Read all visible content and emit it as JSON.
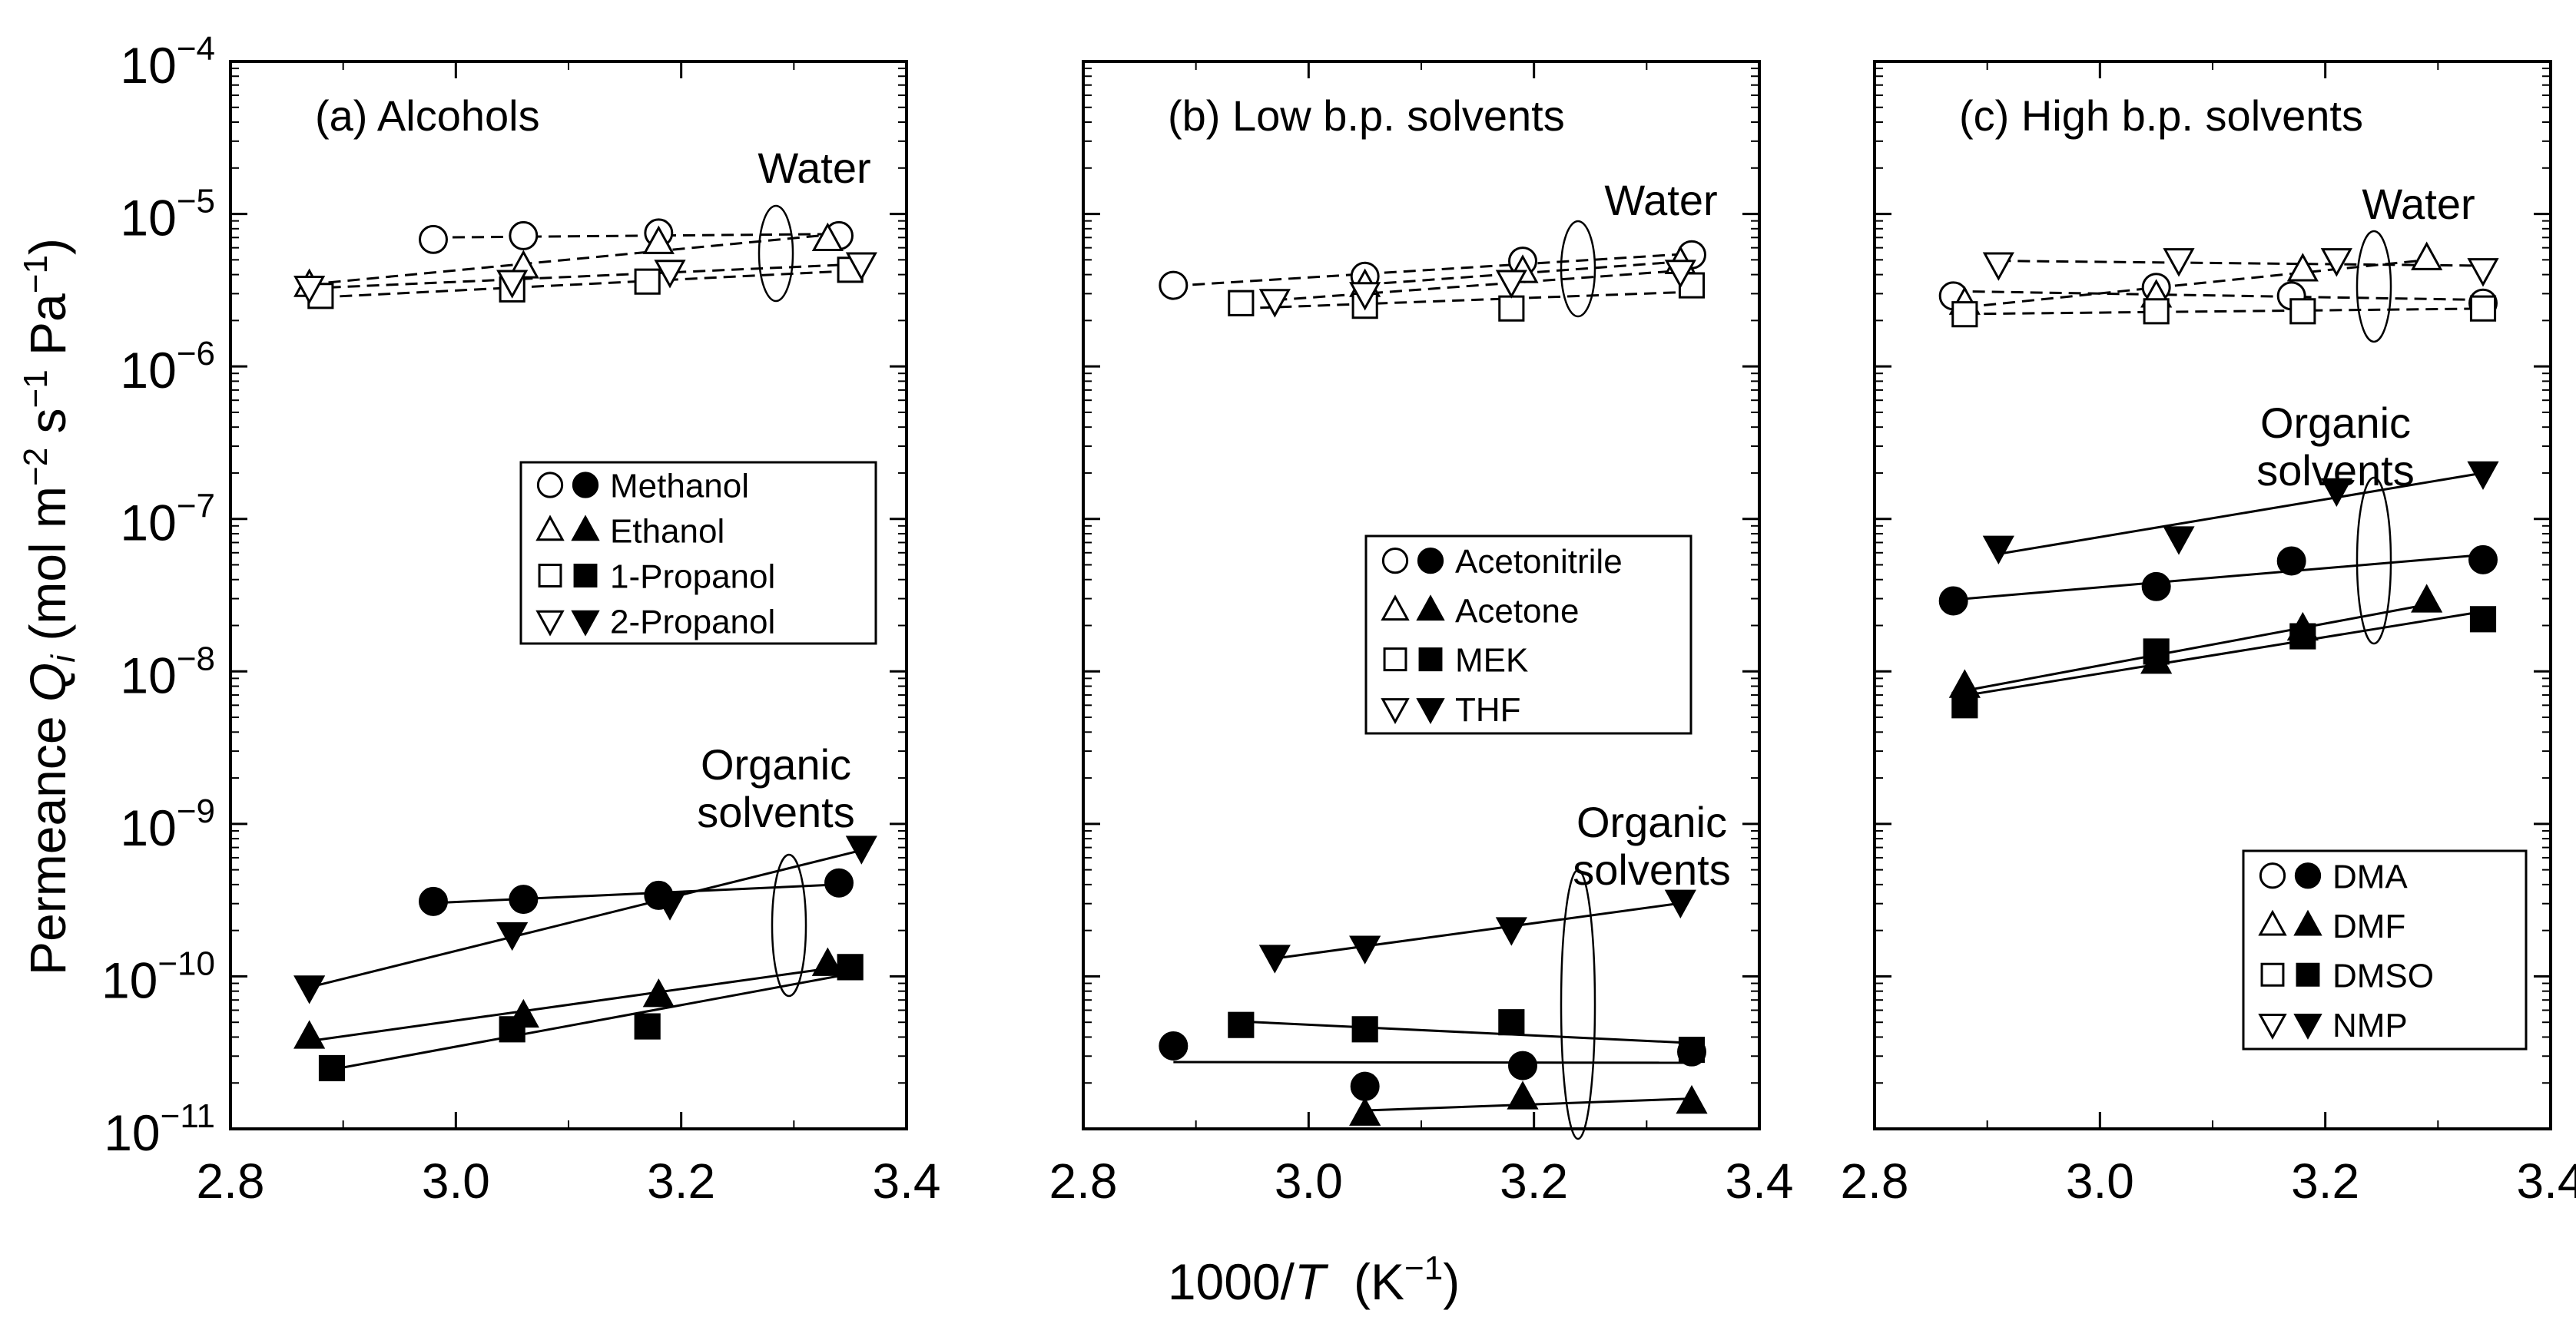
{
  "figure": {
    "ylabel_prefix": "Permeance ",
    "ylabel_var": "Q",
    "ylabel_sub": "i",
    "ylabel_unit_open": " (mol m",
    "ylabel_exp1": "−2",
    "ylabel_s": " s",
    "ylabel_exp2": "−1",
    "ylabel_pa": " Pa",
    "ylabel_exp3": "−1",
    "ylabel_close": ")",
    "xlabel_prefix": "1000/",
    "xlabel_var": "T",
    "xlabel_unit": "  (K",
    "xlabel_exp": "−1",
    "xlabel_close": ")",
    "y_tick_base": "10",
    "y_tick_exponents": [
      "−11",
      "−10",
      "−9",
      "−8",
      "−7",
      "−6",
      "−5",
      "−4"
    ],
    "x_tick_labels": [
      "2.8",
      "3.0",
      "3.2",
      "3.4"
    ]
  },
  "chart_data": [
    {
      "type": "scatter",
      "title": "(a) Alcohols",
      "xlabel": "1000/T (K−1)",
      "ylabel": "Permeance Qi (mol m−2 s−1 Pa−1)",
      "xlim": [
        2.8,
        3.4
      ],
      "ylim": [
        1e-11,
        0.0001
      ],
      "yscale": "log",
      "legend": [
        {
          "label": "Methanol",
          "open": "○",
          "filled": "●"
        },
        {
          "label": "Ethanol",
          "open": "△",
          "filled": "▲"
        },
        {
          "label": "1-Propanol",
          "open": "□",
          "filled": "■"
        },
        {
          "label": "2-Propanol",
          "open": "▽",
          "filled": "▼"
        }
      ],
      "annotations": [
        {
          "text": "Water"
        },
        {
          "text": "Organic",
          "text2": "solvents"
        }
      ],
      "series": [
        {
          "name": "Methanol water",
          "marker": "circle",
          "filled": false,
          "line": "dashed",
          "x": [
            2.98,
            3.06,
            3.18,
            3.34
          ],
          "y": [
            6.8e-06,
            7.2e-06,
            7.5e-06,
            7.2e-06
          ]
        },
        {
          "name": "Ethanol water",
          "marker": "triangle-up",
          "filled": false,
          "line": "dashed",
          "x": [
            2.87,
            3.06,
            3.18,
            3.33
          ],
          "y": [
            3.4e-06,
            4.5e-06,
            6.5e-06,
            6.8e-06
          ]
        },
        {
          "name": "1-Propanol water",
          "marker": "square",
          "filled": false,
          "line": "dashed",
          "x": [
            2.88,
            3.05,
            3.17,
            3.35
          ],
          "y": [
            2.9e-06,
            3.2e-06,
            3.6e-06,
            4.3e-06
          ]
        },
        {
          "name": "2-Propanol water",
          "marker": "triangle-down",
          "filled": false,
          "line": "dashed",
          "x": [
            2.87,
            3.05,
            3.19,
            3.36
          ],
          "y": [
            3.3e-06,
            3.6e-06,
            4.2e-06,
            4.7e-06
          ]
        },
        {
          "name": "Methanol",
          "marker": "circle",
          "filled": true,
          "line": "solid",
          "x": [
            2.98,
            3.06,
            3.18,
            3.34
          ],
          "y": [
            3.1e-10,
            3.2e-10,
            3.4e-10,
            4.1e-10
          ]
        },
        {
          "name": "Ethanol",
          "marker": "triangle-up",
          "filled": true,
          "line": "solid",
          "x": [
            2.87,
            3.06,
            3.18,
            3.33
          ],
          "y": [
            4e-11,
            5.5e-11,
            7.5e-11,
            1.2e-10
          ]
        },
        {
          "name": "1-Propanol",
          "marker": "square",
          "filled": true,
          "line": "solid",
          "x": [
            2.89,
            3.05,
            3.17,
            3.35
          ],
          "y": [
            2.5e-11,
            4.5e-11,
            4.7e-11,
            1.15e-10
          ]
        },
        {
          "name": "2-Propanol",
          "marker": "triangle-down",
          "filled": true,
          "line": "solid",
          "x": [
            2.87,
            3.05,
            3.19,
            3.36
          ],
          "y": [
            8.5e-11,
            1.9e-10,
            3e-10,
            7e-10
          ]
        }
      ]
    },
    {
      "type": "scatter",
      "title": "(b) Low b.p. solvents",
      "xlabel": "1000/T (K−1)",
      "ylabel": "Permeance Qi (mol m−2 s−1 Pa−1)",
      "xlim": [
        2.8,
        3.4
      ],
      "ylim": [
        1e-11,
        0.0001
      ],
      "yscale": "log",
      "legend": [
        {
          "label": "Acetonitrile",
          "open": "○",
          "filled": "●"
        },
        {
          "label": "Acetone",
          "open": "△",
          "filled": "▲"
        },
        {
          "label": "MEK",
          "open": "□",
          "filled": "■"
        },
        {
          "label": "THF",
          "open": "▽",
          "filled": "▼"
        }
      ],
      "annotations": [
        {
          "text": "Water"
        },
        {
          "text": "Organic",
          "text2": "solvents"
        }
      ],
      "series": [
        {
          "name": "Acetonitrile water",
          "marker": "circle",
          "filled": false,
          "line": "dashed",
          "x": [
            2.88,
            3.05,
            3.19,
            3.34
          ],
          "y": [
            3.4e-06,
            3.9e-06,
            4.9e-06,
            5.4e-06
          ]
        },
        {
          "name": "Acetone water",
          "marker": "triangle-up",
          "filled": false,
          "line": "dashed",
          "x": [
            3.05,
            3.19,
            3.33
          ],
          "y": [
            3.4e-06,
            4.2e-06,
            4.8e-06
          ]
        },
        {
          "name": "MEK water",
          "marker": "square",
          "filled": false,
          "line": "dashed",
          "x": [
            2.94,
            3.05,
            3.18,
            3.34
          ],
          "y": [
            2.6e-06,
            2.5e-06,
            2.4e-06,
            3.4e-06
          ]
        },
        {
          "name": "THF water",
          "marker": "triangle-down",
          "filled": false,
          "line": "dashed",
          "x": [
            2.97,
            3.05,
            3.18,
            3.33
          ],
          "y": [
            2.7e-06,
            3e-06,
            3.6e-06,
            4.2e-06
          ]
        },
        {
          "name": "Acetonitrile",
          "marker": "circle",
          "filled": true,
          "line": "solid",
          "x": [
            2.88,
            3.05,
            3.19,
            3.34
          ],
          "y": [
            3.5e-11,
            1.9e-11,
            2.6e-11,
            3.2e-11
          ]
        },
        {
          "name": "Acetone",
          "marker": "triangle-up",
          "filled": true,
          "line": "solid",
          "x": [
            3.05,
            3.19,
            3.34
          ],
          "y": [
            1.25e-11,
            1.6e-11,
            1.5e-11
          ]
        },
        {
          "name": "MEK",
          "marker": "square",
          "filled": true,
          "line": "solid",
          "x": [
            2.94,
            3.05,
            3.18,
            3.34
          ],
          "y": [
            4.8e-11,
            4.5e-11,
            5e-11,
            3.3e-11
          ]
        },
        {
          "name": "THF",
          "marker": "triangle-down",
          "filled": true,
          "line": "solid",
          "x": [
            2.97,
            3.05,
            3.18,
            3.33
          ],
          "y": [
            1.35e-10,
            1.55e-10,
            2.05e-10,
            3.1e-10
          ]
        }
      ]
    },
    {
      "type": "scatter",
      "title": "(c) High b.p. solvents",
      "xlabel": "1000/T (K−1)",
      "ylabel": "Permeance Qi (mol m−2 s−1 Pa−1)",
      "xlim": [
        2.8,
        3.4
      ],
      "ylim": [
        1e-11,
        0.0001
      ],
      "yscale": "log",
      "legend": [
        {
          "label": "DMA",
          "open": "○",
          "filled": "●"
        },
        {
          "label": "DMF",
          "open": "△",
          "filled": "▲"
        },
        {
          "label": "DMSO",
          "open": "□",
          "filled": "■"
        },
        {
          "label": "NMP",
          "open": "▽",
          "filled": "▼"
        }
      ],
      "annotations": [
        {
          "text": "Water"
        },
        {
          "text": "Organic",
          "text2": "solvents"
        }
      ],
      "series": [
        {
          "name": "DMA water",
          "marker": "circle",
          "filled": false,
          "line": "dashed",
          "x": [
            2.87,
            3.05,
            3.17,
            3.34
          ],
          "y": [
            2.9e-06,
            3.3e-06,
            2.9e-06,
            2.6e-06
          ]
        },
        {
          "name": "DMF water",
          "marker": "triangle-up",
          "filled": false,
          "line": "dashed",
          "x": [
            2.88,
            3.05,
            3.18,
            3.29
          ],
          "y": [
            2.6e-06,
            2.9e-06,
            4.3e-06,
            5.1e-06
          ]
        },
        {
          "name": "DMSO water",
          "marker": "square",
          "filled": false,
          "line": "dashed",
          "x": [
            2.88,
            3.05,
            3.18,
            3.34
          ],
          "y": [
            2.2e-06,
            2.3e-06,
            2.3e-06,
            2.4e-06
          ]
        },
        {
          "name": "NMP water",
          "marker": "triangle-down",
          "filled": false,
          "line": "dashed",
          "x": [
            2.91,
            3.07,
            3.21,
            3.34
          ],
          "y": [
            4.7e-06,
            5e-06,
            5e-06,
            4.3e-06
          ]
        },
        {
          "name": "DMA",
          "marker": "circle",
          "filled": true,
          "line": "solid",
          "x": [
            2.87,
            3.05,
            3.17,
            3.34
          ],
          "y": [
            2.9e-08,
            3.6e-08,
            5.3e-08,
            5.4e-08
          ]
        },
        {
          "name": "DMF",
          "marker": "triangle-up",
          "filled": true,
          "line": "solid",
          "x": [
            2.88,
            3.05,
            3.18,
            3.29
          ],
          "y": [
            8e-09,
            1.15e-08,
            1.9e-08,
            2.9e-08
          ]
        },
        {
          "name": "DMSO",
          "marker": "square",
          "filled": true,
          "line": "solid",
          "x": [
            2.88,
            3.05,
            3.18,
            3.34
          ],
          "y": [
            6e-09,
            1.35e-08,
            1.7e-08,
            2.2e-08
          ]
        },
        {
          "name": "NMP",
          "marker": "triangle-down",
          "filled": true,
          "line": "solid",
          "x": [
            2.91,
            3.07,
            3.21,
            3.34
          ],
          "y": [
            6.5e-08,
            7.5e-08,
            1.55e-07,
            2e-07
          ]
        }
      ]
    }
  ]
}
